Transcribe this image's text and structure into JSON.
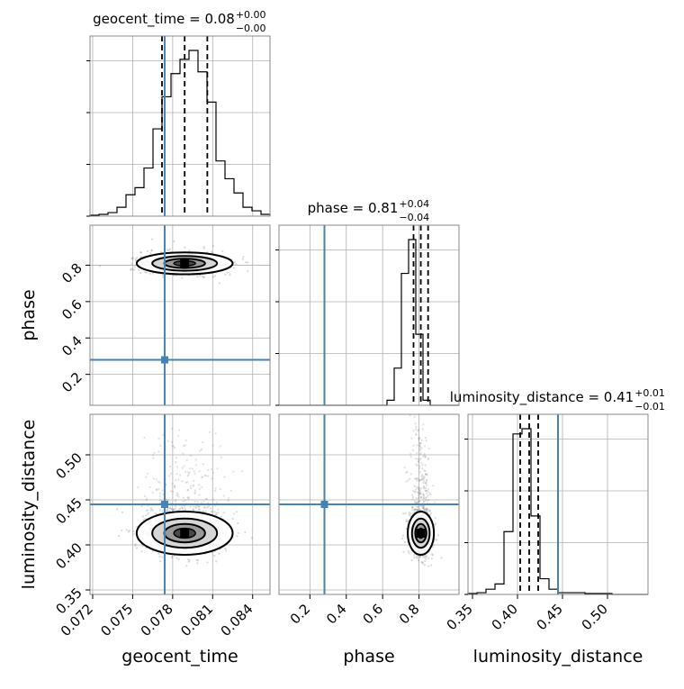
{
  "chart_data": {
    "type": "corner",
    "parameters": [
      "geocent_time",
      "phase",
      "luminosity_distance"
    ],
    "truths": {
      "geocent_time": 0.0774,
      "phase": 0.28,
      "luminosity_distance": 0.445
    },
    "panel_titles": [
      {
        "param": "geocent_time",
        "text": "geocent_time = 0.08",
        "sup": "+0.00",
        "sub": "−0.00"
      },
      {
        "param": "phase",
        "text": "phase = 0.81",
        "sup": "+0.04",
        "sub": "−0.04"
      },
      {
        "param": "luminosity_distance",
        "text": "luminosity_distance = 0.41",
        "sup": "+0.01",
        "sub": "−0.01"
      }
    ],
    "axis_labels": {
      "x": [
        "geocent_time",
        "phase",
        "luminosity_distance"
      ],
      "y": [
        "phase",
        "luminosity_distance"
      ]
    },
    "ticks": {
      "geocent_time": [
        "0.072",
        "0.075",
        "0.078",
        "0.081",
        "0.084"
      ],
      "phase": [
        "0.2",
        "0.4",
        "0.6",
        "0.8"
      ],
      "luminosity_distance": [
        "0.35",
        "0.40",
        "0.45",
        "0.50"
      ]
    },
    "ranges": {
      "geocent_time": [
        0.0718,
        0.0853
      ],
      "phase": [
        0.03,
        1.02
      ],
      "luminosity_distance": [
        0.345,
        0.545
      ]
    },
    "quantiles": {
      "geocent_time": [
        0.0772,
        0.0789,
        0.0806
      ],
      "phase": [
        0.77,
        0.81,
        0.85
      ],
      "luminosity_distance": [
        0.403,
        0.413,
        0.423
      ]
    },
    "histograms": {
      "geocent_time": {
        "edges_range": [
          0.0718,
          0.0853
        ],
        "counts": [
          0.005,
          0.01,
          0.02,
          0.05,
          0.12,
          0.16,
          0.27,
          0.49,
          0.67,
          0.8,
          0.88,
          0.93,
          0.81,
          0.64,
          0.31,
          0.21,
          0.13,
          0.05,
          0.03,
          0.01
        ]
      },
      "phase": {
        "edges_range": [
          0.03,
          1.02
        ],
        "counts": [
          0,
          0,
          0,
          0,
          0,
          0,
          0,
          0,
          0,
          0,
          0,
          0,
          0,
          0,
          0,
          0.03,
          0.22,
          0.78,
          0.98,
          0.42,
          0.03,
          0,
          0,
          0,
          0
        ]
      },
      "luminosity_distance": {
        "edges_range": [
          0.345,
          0.545
        ],
        "counts": [
          0.005,
          0.01,
          0.03,
          0.06,
          0.36,
          0.92,
          0.95,
          0.45,
          0.09,
          0.03,
          0.01,
          0.01,
          0.01,
          0.005,
          0.005,
          0.005,
          0,
          0,
          0,
          0
        ]
      }
    },
    "posterior_center": {
      "geocent_time": 0.0789,
      "phase": 0.81,
      "luminosity_distance": 0.413
    },
    "grid": true,
    "colors": {
      "truth": "#4682b4",
      "hist": "#000000",
      "grid": "#b0b0b0",
      "scatter": "#808080"
    }
  }
}
